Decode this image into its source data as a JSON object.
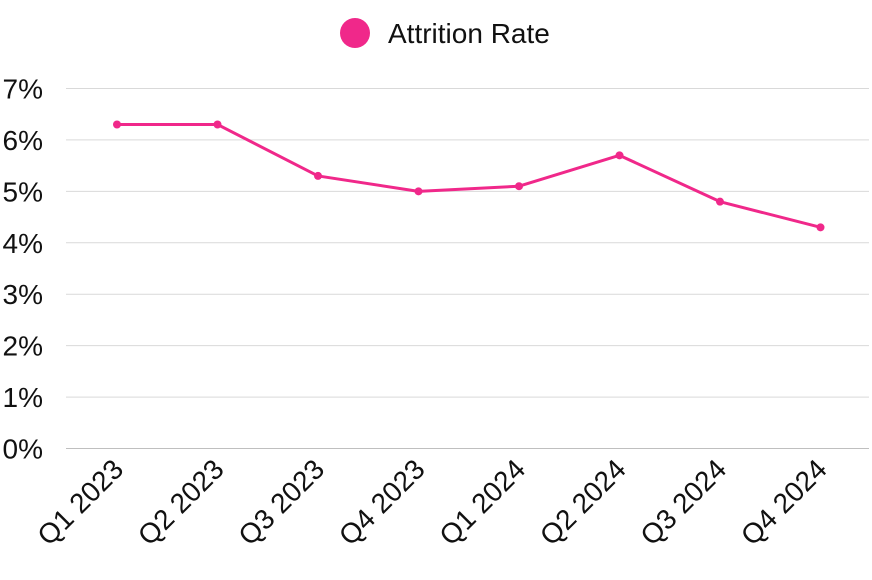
{
  "chart_data": {
    "type": "line",
    "title": "",
    "xlabel": "",
    "ylabel": "",
    "categories": [
      "Q1 2023",
      "Q2 2023",
      "Q3 2023",
      "Q4 2023",
      "Q1 2024",
      "Q2 2024",
      "Q3 2024",
      "Q4 2024"
    ],
    "series": [
      {
        "name": "Attrition Rate",
        "color": "#f0288a",
        "values": [
          6.3,
          6.3,
          5.3,
          5.0,
          5.1,
          5.7,
          4.8,
          4.3
        ]
      }
    ],
    "ylim": [
      0,
      7
    ],
    "yticks": [
      "0%",
      "1%",
      "2%",
      "3%",
      "4%",
      "5%",
      "6%",
      "7%"
    ],
    "grid": true,
    "legend_position": "top-center"
  }
}
